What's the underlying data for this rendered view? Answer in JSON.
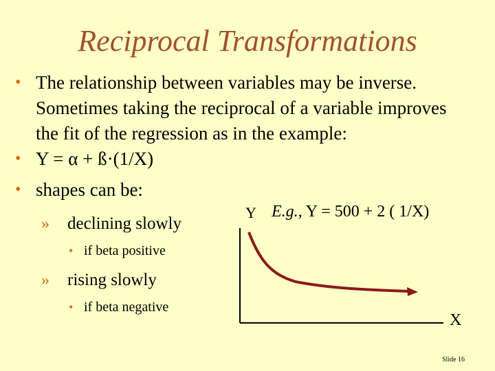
{
  "title": "Reciprocal Transformations",
  "bullets": {
    "b1": "The relationship between variables may be inverse.  Sometimes taking the reciprocal of a variable improves the fit of the regression as in the example:",
    "b2": "Y = α + ß·(1/X)",
    "b3": "shapes can be:",
    "sub1": "declining slowly",
    "sub1_detail": "if beta positive",
    "sub2": "rising slowly",
    "sub2_detail": "if beta negative"
  },
  "chart_data": {
    "type": "line",
    "title": "",
    "example_prefix": "E.g.,",
    "example_equation": "Y = 500 + 2 ( 1/X)",
    "xlabel": "X",
    "ylabel": "Y",
    "shape": "declining curve",
    "axes_color": "#000000",
    "curve_color": "#8B1A1A"
  },
  "footer": {
    "slide_number": "Slide 16"
  },
  "colors": {
    "background": "#FFFFC8",
    "title": "#A0522D",
    "bullet": "#D2691E"
  }
}
